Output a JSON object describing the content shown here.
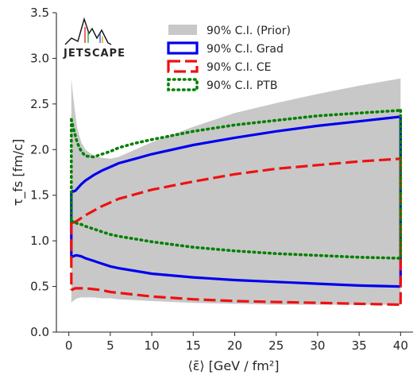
{
  "chart_data": {
    "type": "area",
    "xlabel": "⟨ε̄⟩ [GeV / fm²]",
    "ylabel": "τ_fs [fm/c]",
    "xlim": [
      -1.5,
      41.5
    ],
    "ylim": [
      0.0,
      3.5
    ],
    "xticks": [
      0,
      5,
      10,
      15,
      20,
      25,
      30,
      35,
      40
    ],
    "yticks": [
      0.0,
      0.5,
      1.0,
      1.5,
      2.0,
      2.5,
      3.0,
      3.5
    ],
    "xtick_labels": [
      "0",
      "5",
      "10",
      "15",
      "20",
      "25",
      "30",
      "35",
      "40"
    ],
    "ytick_labels": [
      "0.0",
      "0.5",
      "1.0",
      "1.5",
      "2.0",
      "2.5",
      "3.0",
      "3.5"
    ],
    "grid": false,
    "legend_position": "top-right",
    "logo_text": "JETSCAPE",
    "series": [
      {
        "name": "90% C.I. (Prior)",
        "style": "fill",
        "color": "#c8c8c8",
        "x": [
          0.3,
          0.5,
          0.8,
          1,
          1.5,
          2,
          3,
          4,
          5,
          6,
          8,
          10,
          15,
          20,
          25,
          30,
          35,
          40
        ],
        "upper": [
          2.78,
          2.6,
          2.38,
          2.24,
          2.08,
          2.0,
          1.93,
          1.91,
          1.9,
          1.92,
          2.0,
          2.08,
          2.25,
          2.4,
          2.51,
          2.61,
          2.7,
          2.78
        ],
        "lower": [
          0.32,
          0.34,
          0.36,
          0.37,
          0.38,
          0.38,
          0.38,
          0.37,
          0.37,
          0.36,
          0.35,
          0.34,
          0.32,
          0.31,
          0.3,
          0.3,
          0.3,
          0.3
        ]
      },
      {
        "name": "90% C.I. Grad",
        "style": "solid",
        "color": "#0000ee",
        "x": [
          0.3,
          0.5,
          0.8,
          1,
          1.5,
          2,
          3,
          4,
          5,
          6,
          8,
          10,
          15,
          20,
          25,
          30,
          35,
          40
        ],
        "upper": [
          1.55,
          1.54,
          1.55,
          1.57,
          1.62,
          1.66,
          1.72,
          1.77,
          1.81,
          1.85,
          1.9,
          1.95,
          2.05,
          2.13,
          2.2,
          2.26,
          2.31,
          2.36
        ],
        "lower": [
          0.82,
          0.83,
          0.84,
          0.84,
          0.83,
          0.81,
          0.78,
          0.75,
          0.72,
          0.7,
          0.67,
          0.64,
          0.6,
          0.57,
          0.55,
          0.53,
          0.51,
          0.5
        ]
      },
      {
        "name": "90% C.I. CE",
        "style": "dashed",
        "color": "#ee1111",
        "x": [
          0.3,
          0.5,
          0.8,
          1,
          1.5,
          2,
          3,
          4,
          5,
          6,
          8,
          10,
          15,
          20,
          25,
          30,
          35,
          40
        ],
        "upper": [
          1.2,
          1.2,
          1.21,
          1.22,
          1.25,
          1.28,
          1.33,
          1.38,
          1.42,
          1.46,
          1.51,
          1.56,
          1.65,
          1.73,
          1.79,
          1.83,
          1.87,
          1.9
        ],
        "lower": [
          0.46,
          0.47,
          0.48,
          0.48,
          0.48,
          0.48,
          0.47,
          0.46,
          0.44,
          0.43,
          0.41,
          0.39,
          0.36,
          0.34,
          0.33,
          0.32,
          0.31,
          0.3
        ]
      },
      {
        "name": "90% C.I. PTB",
        "style": "dotted",
        "color": "#008000",
        "x": [
          0.3,
          0.5,
          0.8,
          1,
          1.5,
          2,
          3,
          4,
          5,
          6,
          8,
          10,
          15,
          20,
          25,
          30,
          35,
          40
        ],
        "upper": [
          2.33,
          2.25,
          2.15,
          2.08,
          1.98,
          1.93,
          1.92,
          1.95,
          1.98,
          2.02,
          2.07,
          2.11,
          2.2,
          2.27,
          2.32,
          2.37,
          2.4,
          2.43
        ],
        "lower": [
          1.22,
          1.21,
          1.2,
          1.19,
          1.18,
          1.16,
          1.13,
          1.1,
          1.07,
          1.05,
          1.02,
          0.99,
          0.93,
          0.89,
          0.86,
          0.84,
          0.82,
          0.81
        ]
      }
    ]
  }
}
